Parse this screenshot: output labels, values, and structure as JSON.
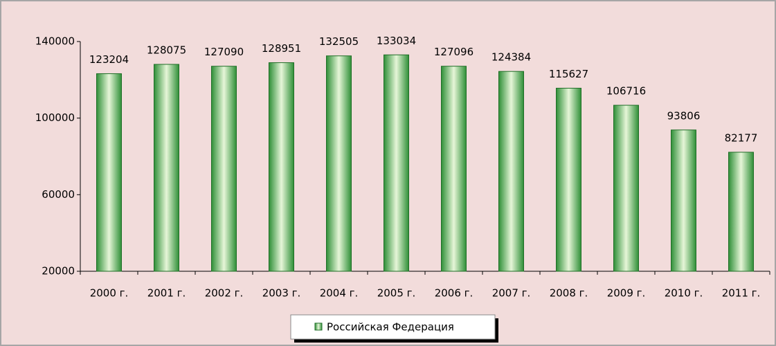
{
  "chart_data": {
    "type": "bar",
    "categories": [
      "2000 г.",
      "2001 г.",
      "2002 г.",
      "2003 г.",
      "2004 г.",
      "2005 г.",
      "2006 г.",
      "2007 г.",
      "2008 г.",
      "2009 г.",
      "2010 г.",
      "2011 г."
    ],
    "series": [
      {
        "name": "Российская Федерация",
        "color": "#2e9a3a",
        "values": [
          123204,
          128075,
          127090,
          128951,
          132505,
          133034,
          127096,
          124384,
          115627,
          106716,
          93806,
          82177
        ]
      }
    ],
    "ylim": [
      20000,
      140000
    ],
    "yticks": [
      20000,
      60000,
      100000,
      140000
    ],
    "grid": false,
    "legend": "bottom"
  }
}
